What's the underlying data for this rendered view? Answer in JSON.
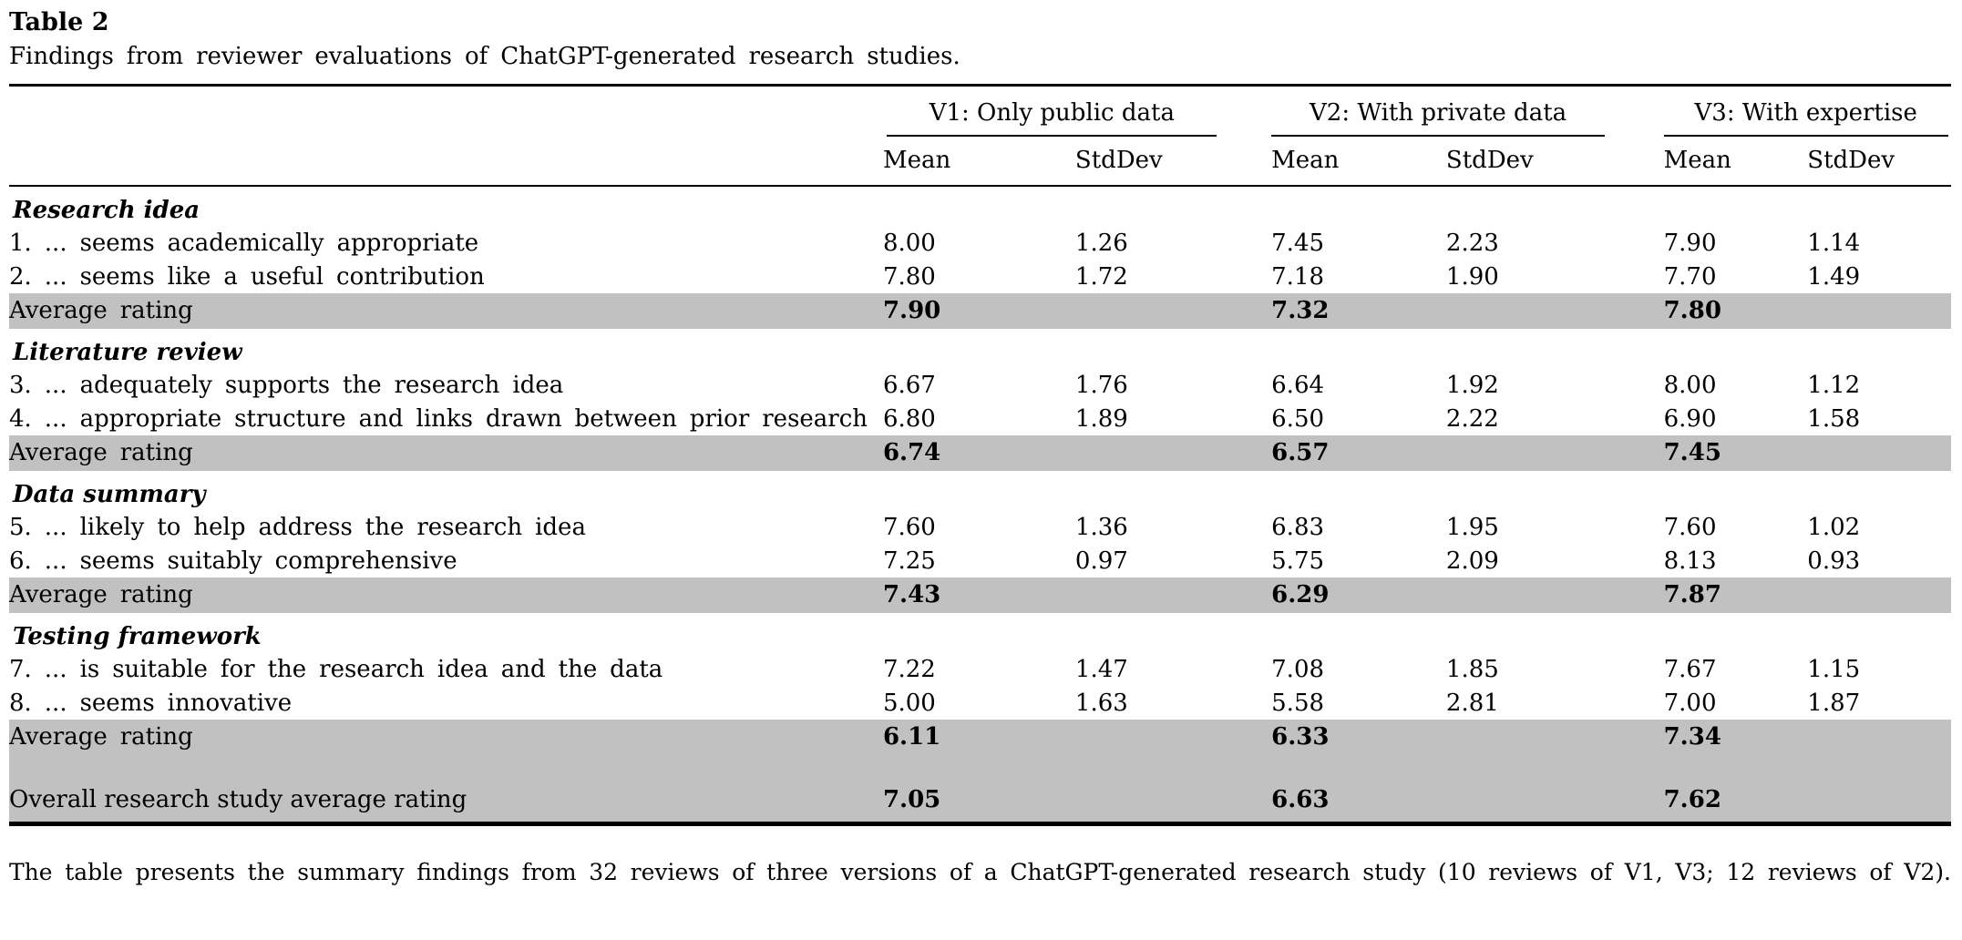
{
  "title": "Table 2",
  "caption": "Findings from reviewer evaluations of ChatGPT-generated research studies.",
  "columns": {
    "groups": [
      {
        "label": "V1: Only public data"
      },
      {
        "label": "V2: With private data"
      },
      {
        "label": "V3: With expertise"
      }
    ],
    "sub": [
      "Mean",
      "StdDev"
    ]
  },
  "sections": [
    {
      "name": "Research idea",
      "rows": [
        {
          "label": "1. ... seems academically appropriate",
          "values": [
            "8.00",
            "1.26",
            "7.45",
            "2.23",
            "7.90",
            "1.14"
          ]
        },
        {
          "label": "2. ... seems like a useful contribution",
          "values": [
            "7.80",
            "1.72",
            "7.18",
            "1.90",
            "7.70",
            "1.49"
          ]
        }
      ],
      "average": {
        "label": "Average rating",
        "values": [
          "7.90",
          "7.32",
          "7.80"
        ]
      }
    },
    {
      "name": "Literature review",
      "rows": [
        {
          "label": "3. ... adequately supports the research idea",
          "values": [
            "6.67",
            "1.76",
            "6.64",
            "1.92",
            "8.00",
            "1.12"
          ]
        },
        {
          "label": "4. ... appropriate structure and links drawn between prior research",
          "values": [
            "6.80",
            "1.89",
            "6.50",
            "2.22",
            "6.90",
            "1.58"
          ]
        }
      ],
      "average": {
        "label": "Average rating",
        "values": [
          "6.74",
          "6.57",
          "7.45"
        ]
      }
    },
    {
      "name": "Data summary",
      "rows": [
        {
          "label": "5. ... likely to help address the research idea",
          "values": [
            "7.60",
            "1.36",
            "6.83",
            "1.95",
            "7.60",
            "1.02"
          ]
        },
        {
          "label": "6. ... seems suitably comprehensive",
          "values": [
            "7.25",
            "0.97",
            "5.75",
            "2.09",
            "8.13",
            "0.93"
          ]
        }
      ],
      "average": {
        "label": "Average rating",
        "values": [
          "7.43",
          "6.29",
          "7.87"
        ]
      }
    },
    {
      "name": "Testing framework",
      "rows": [
        {
          "label": "7. ... is suitable for the research idea and the data",
          "values": [
            "7.22",
            "1.47",
            "7.08",
            "1.85",
            "7.67",
            "1.15"
          ]
        },
        {
          "label": "8. ... seems innovative",
          "values": [
            "5.00",
            "1.63",
            "5.58",
            "2.81",
            "7.00",
            "1.87"
          ]
        }
      ],
      "average": {
        "label": "Average rating",
        "values": [
          "6.11",
          "6.33",
          "7.34"
        ]
      }
    }
  ],
  "overall": {
    "label": "Overall research study average rating",
    "values": [
      "7.05",
      "6.63",
      "7.62"
    ]
  },
  "footnote": "The table presents the summary findings from 32 reviews of three versions of a ChatGPT-generated research study (10 reviews of V1, V3; 12 reviews of V2).",
  "colors": {
    "highlight": "#c1c1c1",
    "rule": "#000000"
  }
}
